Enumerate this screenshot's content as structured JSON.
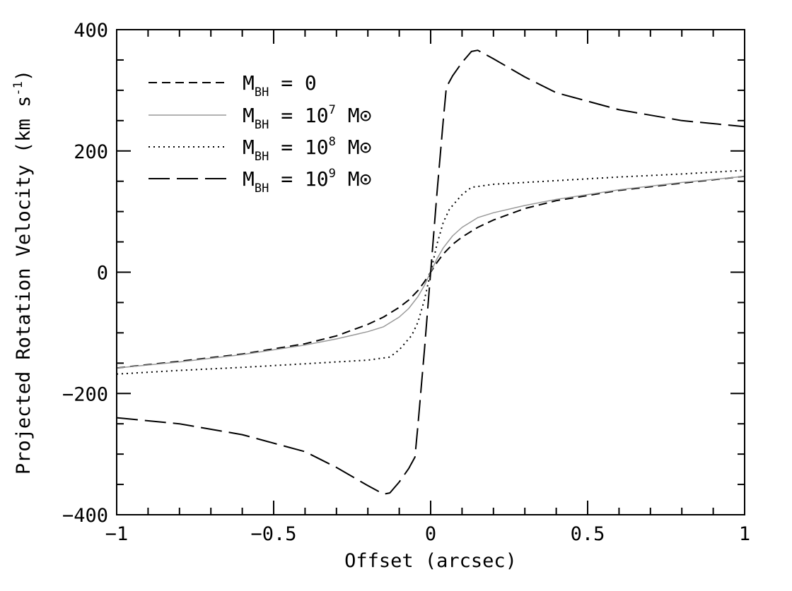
{
  "chart_data": {
    "type": "line",
    "title": "",
    "xlabel": "Offset (arcsec)",
    "ylabel": "Projected Rotation Velocity (km s",
    "ylabel_sup": "-1",
    "ylabel_tail": ")",
    "xlim": [
      -1,
      1
    ],
    "ylim": [
      -400,
      400
    ],
    "x_ticks": [
      -1,
      -0.5,
      0,
      0.5,
      1
    ],
    "x_tick_labels": [
      "−1",
      "−0.5",
      "0",
      "0.5",
      "1"
    ],
    "y_ticks": [
      -400,
      -200,
      0,
      200,
      400
    ],
    "y_tick_labels": [
      "−400",
      "−200",
      "0",
      "200",
      "400"
    ],
    "grid": false,
    "legend_position": "top-left",
    "series": [
      {
        "name": "M_BH = 0",
        "label_main": "M",
        "label_sub": "BH",
        "label_eq": " = 0",
        "label_sup": "",
        "label_tail": "",
        "style": "short-dash",
        "color": "#000000",
        "x": [
          -1.0,
          -0.8,
          -0.6,
          -0.4,
          -0.3,
          -0.2,
          -0.15,
          -0.1,
          -0.07,
          -0.04,
          -0.02,
          0.0,
          0.02,
          0.04,
          0.07,
          0.1,
          0.15,
          0.2,
          0.3,
          0.4,
          0.6,
          0.8,
          1.0
        ],
        "y": [
          -158,
          -147,
          -135,
          -118,
          -105,
          -86,
          -74,
          -58,
          -46,
          -30,
          -16,
          0,
          16,
          30,
          46,
          58,
          74,
          86,
          105,
          118,
          135,
          147,
          158
        ]
      },
      {
        "name": "M_BH = 10^7 M_sun",
        "label_main": "M",
        "label_sub": "BH",
        "label_eq": " = 10",
        "label_sup": "7",
        "label_tail": " M⊙",
        "style": "solid-gray",
        "color": "#999999",
        "x": [
          -1.0,
          -0.8,
          -0.6,
          -0.4,
          -0.3,
          -0.2,
          -0.15,
          -0.1,
          -0.07,
          -0.04,
          -0.02,
          0.0,
          0.02,
          0.04,
          0.07,
          0.1,
          0.15,
          0.2,
          0.3,
          0.4,
          0.6,
          0.8,
          1.0
        ],
        "y": [
          -158,
          -148,
          -136,
          -120,
          -110,
          -98,
          -90,
          -74,
          -60,
          -40,
          -22,
          0,
          22,
          40,
          60,
          74,
          90,
          98,
          110,
          120,
          136,
          148,
          158
        ]
      },
      {
        "name": "M_BH = 10^8 M_sun",
        "label_main": "M",
        "label_sub": "BH",
        "label_eq": " = 10",
        "label_sup": "8",
        "label_tail": " M⊙",
        "style": "dotted",
        "color": "#000000",
        "x": [
          -1.0,
          -0.8,
          -0.6,
          -0.4,
          -0.2,
          -0.13,
          -0.1,
          -0.08,
          -0.06,
          -0.04,
          -0.02,
          0.0,
          0.02,
          0.04,
          0.06,
          0.08,
          0.1,
          0.13,
          0.2,
          0.4,
          0.6,
          0.8,
          1.0
        ],
        "y": [
          -168,
          -162,
          -157,
          -151,
          -145,
          -140,
          -128,
          -116,
          -104,
          -82,
          -46,
          0,
          46,
          82,
          104,
          116,
          128,
          140,
          145,
          151,
          157,
          162,
          168
        ]
      },
      {
        "name": "M_BH = 10^9 M_sun",
        "label_main": "M",
        "label_sub": "BH",
        "label_eq": " = 10",
        "label_sup": "9",
        "label_tail": " M⊙",
        "style": "long-dash",
        "color": "#000000",
        "x": [
          -1.0,
          -0.8,
          -0.6,
          -0.4,
          -0.3,
          -0.2,
          -0.15,
          -0.13,
          -0.1,
          -0.07,
          -0.05,
          -0.04,
          -0.02,
          0.0,
          0.02,
          0.04,
          0.05,
          0.07,
          0.1,
          0.13,
          0.15,
          0.2,
          0.3,
          0.4,
          0.6,
          0.8,
          1.0
        ],
        "y": [
          -240,
          -250,
          -268,
          -296,
          -322,
          -352,
          -366,
          -364,
          -346,
          -324,
          -305,
          -250,
          -130,
          0,
          130,
          250,
          305,
          324,
          346,
          364,
          366,
          352,
          322,
          296,
          268,
          250,
          240
        ]
      }
    ]
  }
}
